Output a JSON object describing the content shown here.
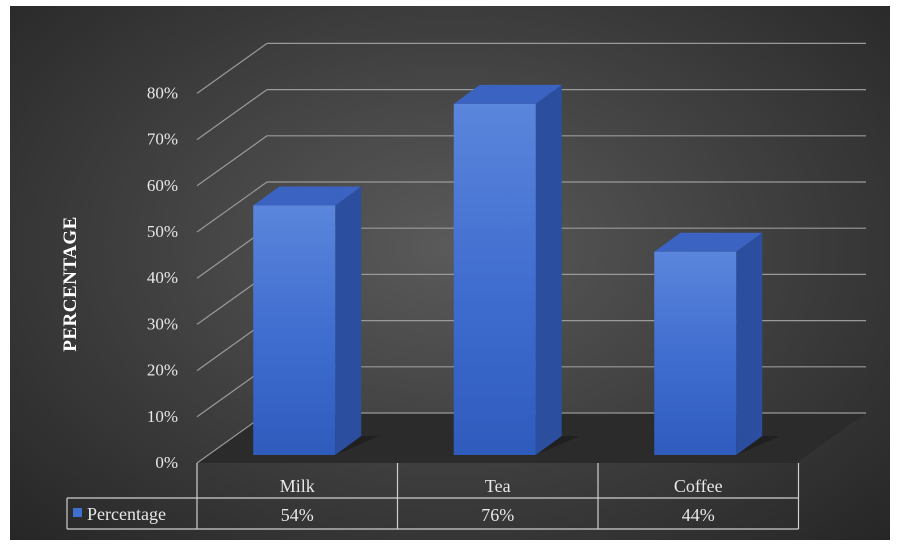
{
  "chart_data": {
    "type": "bar",
    "categories": [
      "Milk",
      "Tea",
      "Coffee"
    ],
    "series": [
      {
        "name": "Percentage",
        "values": [
          54,
          76,
          44
        ]
      }
    ],
    "value_labels": [
      "54%",
      "76%",
      "44%"
    ],
    "ylabel": "PERCENTAGE",
    "ylim": [
      0,
      80
    ],
    "yticks": [
      "0%",
      "10%",
      "20%",
      "30%",
      "40%",
      "50%",
      "60%",
      "70%",
      "80%"
    ],
    "grid": true,
    "three_d": true,
    "legend": "data-table-below",
    "colors": {
      "bar": "#3f6fd1",
      "background": "#3a3a3a",
      "grid": "#9a9a9a"
    }
  }
}
